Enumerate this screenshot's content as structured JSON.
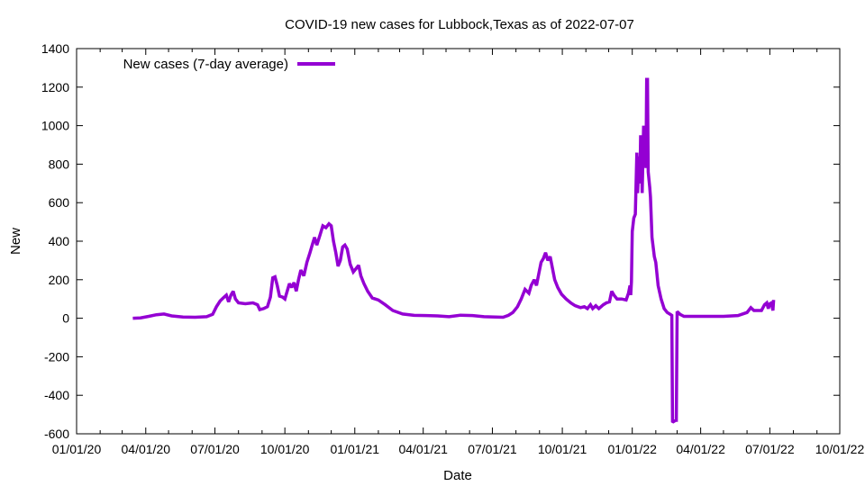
{
  "chart_data": {
    "type": "line",
    "title": "COVID-19 new cases for Lubbock,Texas as of 2022-07-07",
    "xlabel": "Date",
    "ylabel": "New",
    "x_axis_type": "date",
    "xlim": [
      "2020-01-01",
      "2022-10-01"
    ],
    "ylim": [
      -600,
      1400
    ],
    "x_ticks": [
      {
        "date": "2020-01-01",
        "label": "01/01/20"
      },
      {
        "date": "2020-04-01",
        "label": "04/01/20"
      },
      {
        "date": "2020-07-01",
        "label": "07/01/20"
      },
      {
        "date": "2020-10-01",
        "label": "10/01/20"
      },
      {
        "date": "2021-01-01",
        "label": "01/01/21"
      },
      {
        "date": "2021-04-01",
        "label": "04/01/21"
      },
      {
        "date": "2021-07-01",
        "label": "07/01/21"
      },
      {
        "date": "2021-10-01",
        "label": "10/01/21"
      },
      {
        "date": "2022-01-01",
        "label": "01/01/22"
      },
      {
        "date": "2022-04-01",
        "label": "04/01/22"
      },
      {
        "date": "2022-07-01",
        "label": "07/01/22"
      },
      {
        "date": "2022-10-01",
        "label": "10/01/22"
      }
    ],
    "y_ticks": [
      -600,
      -400,
      -200,
      0,
      200,
      400,
      600,
      800,
      1000,
      1200,
      1400
    ],
    "grid": false,
    "legend": {
      "position": "top-left"
    },
    "series": [
      {
        "name": "New cases (7-day average)",
        "color": "#9400d3",
        "points": [
          [
            "2020-03-15",
            0
          ],
          [
            "2020-03-25",
            2
          ],
          [
            "2020-04-05",
            10
          ],
          [
            "2020-04-15",
            18
          ],
          [
            "2020-04-25",
            22
          ],
          [
            "2020-05-05",
            12
          ],
          [
            "2020-05-20",
            6
          ],
          [
            "2020-06-05",
            5
          ],
          [
            "2020-06-20",
            8
          ],
          [
            "2020-06-28",
            20
          ],
          [
            "2020-07-03",
            60
          ],
          [
            "2020-07-08",
            90
          ],
          [
            "2020-07-13",
            110
          ],
          [
            "2020-07-16",
            120
          ],
          [
            "2020-07-19",
            85
          ],
          [
            "2020-07-22",
            120
          ],
          [
            "2020-07-25",
            140
          ],
          [
            "2020-07-28",
            100
          ],
          [
            "2020-08-01",
            80
          ],
          [
            "2020-08-10",
            75
          ],
          [
            "2020-08-20",
            80
          ],
          [
            "2020-08-26",
            70
          ],
          [
            "2020-08-29",
            45
          ],
          [
            "2020-09-03",
            50
          ],
          [
            "2020-09-08",
            60
          ],
          [
            "2020-09-12",
            110
          ],
          [
            "2020-09-15",
            210
          ],
          [
            "2020-09-18",
            215
          ],
          [
            "2020-09-21",
            170
          ],
          [
            "2020-09-24",
            115
          ],
          [
            "2020-09-28",
            110
          ],
          [
            "2020-10-01",
            100
          ],
          [
            "2020-10-04",
            140
          ],
          [
            "2020-10-07",
            180
          ],
          [
            "2020-10-10",
            160
          ],
          [
            "2020-10-13",
            185
          ],
          [
            "2020-10-16",
            140
          ],
          [
            "2020-10-19",
            200
          ],
          [
            "2020-10-22",
            250
          ],
          [
            "2020-10-26",
            220
          ],
          [
            "2020-10-30",
            290
          ],
          [
            "2020-11-03",
            340
          ],
          [
            "2020-11-06",
            380
          ],
          [
            "2020-11-09",
            420
          ],
          [
            "2020-11-12",
            380
          ],
          [
            "2020-11-16",
            430
          ],
          [
            "2020-11-20",
            480
          ],
          [
            "2020-11-24",
            470
          ],
          [
            "2020-11-28",
            490
          ],
          [
            "2020-12-01",
            480
          ],
          [
            "2020-12-04",
            400
          ],
          [
            "2020-12-07",
            340
          ],
          [
            "2020-12-10",
            270
          ],
          [
            "2020-12-13",
            300
          ],
          [
            "2020-12-16",
            370
          ],
          [
            "2020-12-19",
            380
          ],
          [
            "2020-12-22",
            360
          ],
          [
            "2020-12-26",
            280
          ],
          [
            "2020-12-30",
            240
          ],
          [
            "2021-01-03",
            260
          ],
          [
            "2021-01-06",
            275
          ],
          [
            "2021-01-09",
            220
          ],
          [
            "2021-01-13",
            180
          ],
          [
            "2021-01-18",
            140
          ],
          [
            "2021-01-24",
            105
          ],
          [
            "2021-02-01",
            95
          ],
          [
            "2021-02-10",
            70
          ],
          [
            "2021-02-20",
            40
          ],
          [
            "2021-03-05",
            22
          ],
          [
            "2021-03-20",
            15
          ],
          [
            "2021-04-05",
            14
          ],
          [
            "2021-04-20",
            12
          ],
          [
            "2021-05-05",
            8
          ],
          [
            "2021-05-20",
            16
          ],
          [
            "2021-06-05",
            14
          ],
          [
            "2021-06-20",
            8
          ],
          [
            "2021-07-05",
            6
          ],
          [
            "2021-07-15",
            5
          ],
          [
            "2021-07-22",
            15
          ],
          [
            "2021-07-28",
            30
          ],
          [
            "2021-08-03",
            60
          ],
          [
            "2021-08-08",
            100
          ],
          [
            "2021-08-13",
            150
          ],
          [
            "2021-08-18",
            130
          ],
          [
            "2021-08-21",
            170
          ],
          [
            "2021-08-25",
            200
          ],
          [
            "2021-08-28",
            170
          ],
          [
            "2021-08-31",
            230
          ],
          [
            "2021-09-03",
            290
          ],
          [
            "2021-09-06",
            310
          ],
          [
            "2021-09-09",
            340
          ],
          [
            "2021-09-12",
            300
          ],
          [
            "2021-09-15",
            320
          ],
          [
            "2021-09-18",
            260
          ],
          [
            "2021-09-21",
            200
          ],
          [
            "2021-09-25",
            160
          ],
          [
            "2021-09-30",
            125
          ],
          [
            "2021-10-06",
            100
          ],
          [
            "2021-10-12",
            80
          ],
          [
            "2021-10-18",
            65
          ],
          [
            "2021-10-25",
            55
          ],
          [
            "2021-10-30",
            60
          ],
          [
            "2021-11-03",
            50
          ],
          [
            "2021-11-07",
            70
          ],
          [
            "2021-11-10",
            50
          ],
          [
            "2021-11-14",
            65
          ],
          [
            "2021-11-18",
            50
          ],
          [
            "2021-11-24",
            70
          ],
          [
            "2021-11-28",
            80
          ],
          [
            "2021-12-02",
            85
          ],
          [
            "2021-12-05",
            140
          ],
          [
            "2021-12-08",
            120
          ],
          [
            "2021-12-12",
            100
          ],
          [
            "2021-12-18",
            100
          ],
          [
            "2021-12-24",
            95
          ],
          [
            "2021-12-27",
            130
          ],
          [
            "2021-12-29",
            170
          ],
          [
            "2021-12-30",
            120
          ],
          [
            "2021-12-31",
            190
          ],
          [
            "2022-01-01",
            450
          ],
          [
            "2022-01-03",
            520
          ],
          [
            "2022-01-05",
            540
          ],
          [
            "2022-01-07",
            860
          ],
          [
            "2022-01-08",
            650
          ],
          [
            "2022-01-10",
            840
          ],
          [
            "2022-01-11",
            700
          ],
          [
            "2022-01-12",
            950
          ],
          [
            "2022-01-13",
            900
          ],
          [
            "2022-01-14",
            650
          ],
          [
            "2022-01-16",
            1000
          ],
          [
            "2022-01-17",
            880
          ],
          [
            "2022-01-18",
            950
          ],
          [
            "2022-01-19",
            780
          ],
          [
            "2022-01-20",
            1240
          ],
          [
            "2022-01-21",
            1240
          ],
          [
            "2022-01-22",
            760
          ],
          [
            "2022-01-24",
            680
          ],
          [
            "2022-01-25",
            630
          ],
          [
            "2022-01-27",
            420
          ],
          [
            "2022-01-30",
            320
          ],
          [
            "2022-02-01",
            290
          ],
          [
            "2022-02-04",
            170
          ],
          [
            "2022-02-08",
            100
          ],
          [
            "2022-02-12",
            50
          ],
          [
            "2022-02-16",
            30
          ],
          [
            "2022-02-20",
            20
          ],
          [
            "2022-02-22",
            15
          ],
          [
            "2022-02-23",
            -540
          ],
          [
            "2022-02-27",
            -530
          ],
          [
            "2022-02-28",
            -530
          ],
          [
            "2022-03-01",
            35
          ],
          [
            "2022-03-05",
            20
          ],
          [
            "2022-03-10",
            10
          ],
          [
            "2022-03-20",
            10
          ],
          [
            "2022-04-01",
            10
          ],
          [
            "2022-04-15",
            10
          ],
          [
            "2022-05-01",
            10
          ],
          [
            "2022-05-20",
            14
          ],
          [
            "2022-06-01",
            30
          ],
          [
            "2022-06-06",
            55
          ],
          [
            "2022-06-10",
            40
          ],
          [
            "2022-06-20",
            40
          ],
          [
            "2022-06-24",
            70
          ],
          [
            "2022-06-27",
            80
          ],
          [
            "2022-06-29",
            50
          ],
          [
            "2022-07-01",
            75
          ],
          [
            "2022-07-03",
            80
          ],
          [
            "2022-07-05",
            40
          ],
          [
            "2022-07-06",
            95
          ]
        ]
      }
    ]
  }
}
